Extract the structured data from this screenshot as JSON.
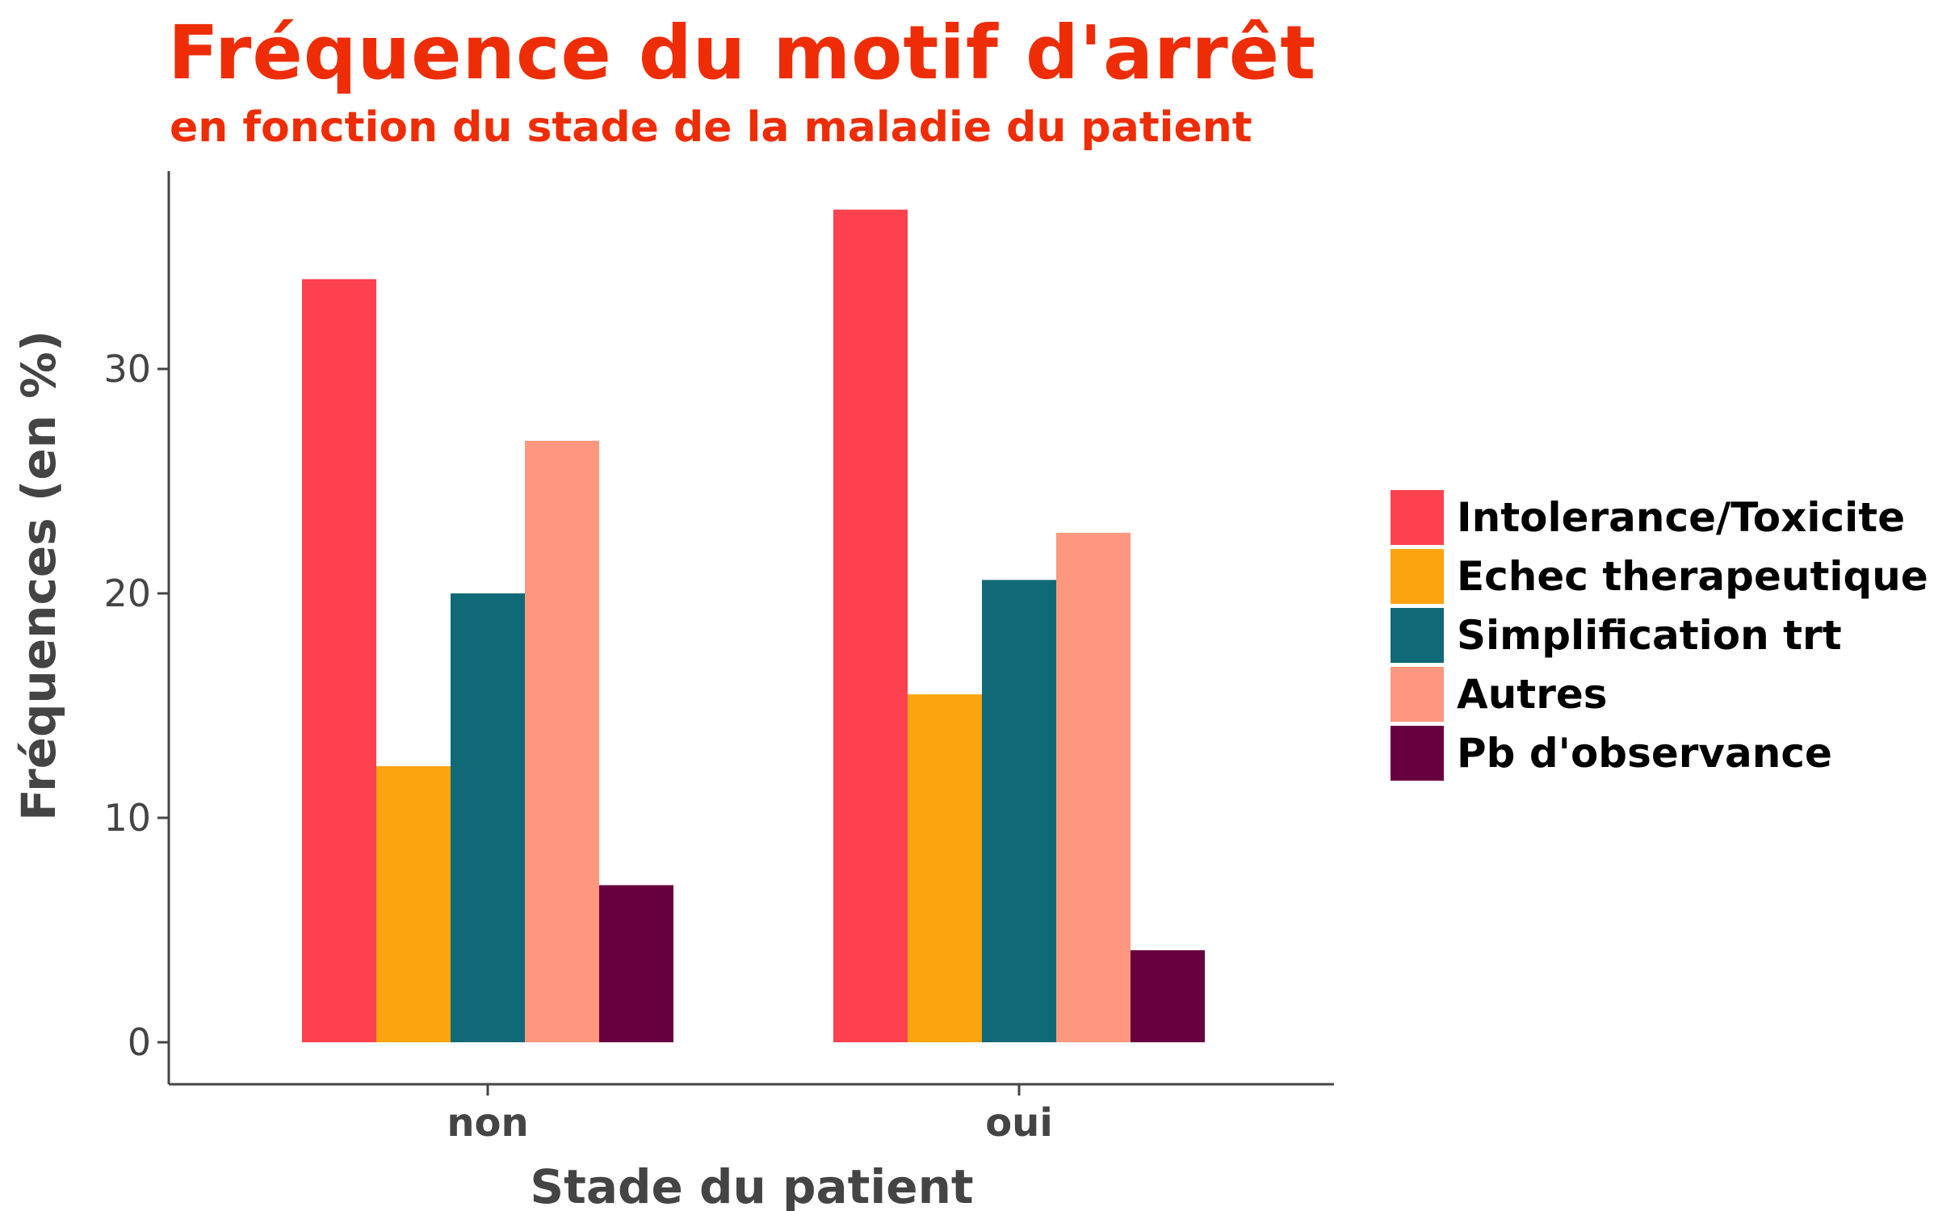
{
  "chart_data": {
    "type": "bar",
    "title": "Fréquence du motif d'arrêt",
    "subtitle": "en fonction du stade de la maladie du patient",
    "xlabel": "Stade du patient",
    "ylabel": "Fréquences (en %)",
    "categories": [
      "non",
      "oui"
    ],
    "yticks": [
      0,
      10,
      20,
      30
    ],
    "ylim": [
      0,
      38
    ],
    "grid": false,
    "legend_position": "right",
    "series": [
      {
        "name": "Intolerance/Toxicite",
        "color": "#fe414f",
        "values": [
          34.0,
          37.1
        ]
      },
      {
        "name": "Echec therapeutique",
        "color": "#fba40e",
        "values": [
          12.3,
          15.5
        ]
      },
      {
        "name": "Simplification trt",
        "color": "#106976",
        "values": [
          20.0,
          20.6
        ]
      },
      {
        "name": "Autres",
        "color": "#fd977f",
        "values": [
          26.8,
          22.7
        ]
      },
      {
        "name": "Pb d'observance",
        "color": "#68003f",
        "values": [
          7.0,
          4.1
        ]
      }
    ]
  }
}
